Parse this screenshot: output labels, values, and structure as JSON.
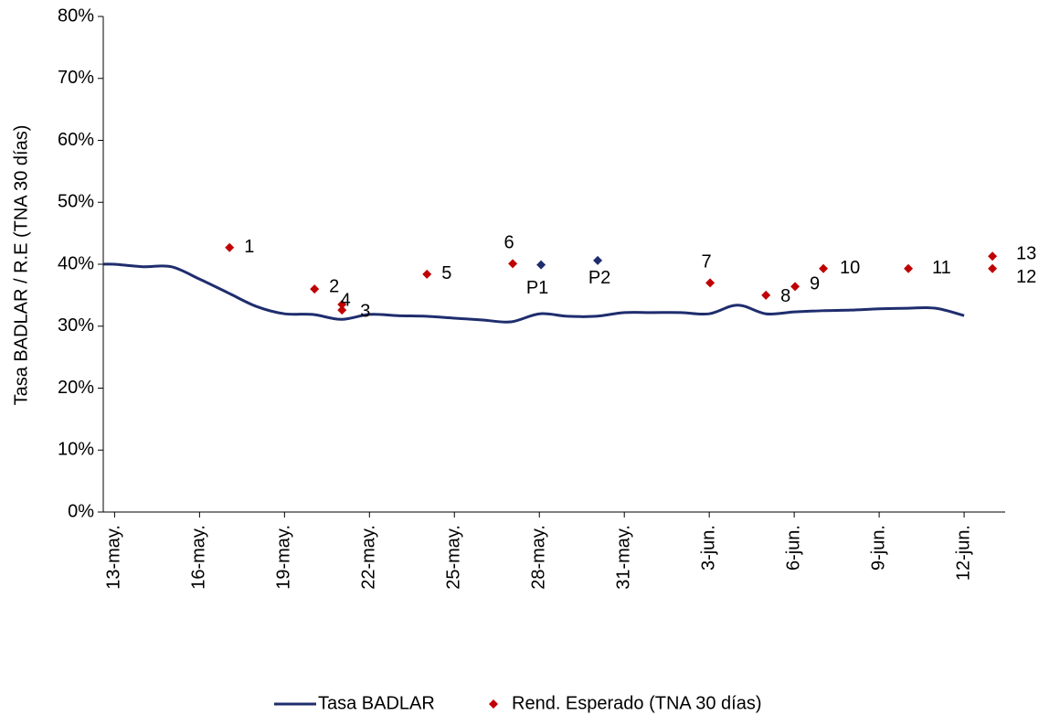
{
  "chart_data": {
    "type": "line-scatter",
    "y_axis_label": "Tasa BADLAR / R.E (TNA 30 días)",
    "xlim": [
      -0.4,
      31.45
    ],
    "xticks": [
      {
        "value": 0,
        "label": "13-may."
      },
      {
        "value": 3,
        "label": "16-may."
      },
      {
        "value": 6,
        "label": "19-may."
      },
      {
        "value": 9,
        "label": "22-may."
      },
      {
        "value": 12,
        "label": "25-may."
      },
      {
        "value": 15,
        "label": "28-may."
      },
      {
        "value": 18,
        "label": "31-may."
      },
      {
        "value": 21,
        "label": "3-jun."
      },
      {
        "value": 24,
        "label": "6-jun."
      },
      {
        "value": 27,
        "label": "9-jun."
      },
      {
        "value": 30,
        "label": "12-jun."
      }
    ],
    "ylim": [
      0,
      80
    ],
    "yticks": [
      {
        "value": 0,
        "label": "0%"
      },
      {
        "value": 10,
        "label": "10%"
      },
      {
        "value": 20,
        "label": "20%"
      },
      {
        "value": 30,
        "label": "30%"
      },
      {
        "value": 40,
        "label": "40%"
      },
      {
        "value": 50,
        "label": "50%"
      },
      {
        "value": 60,
        "label": "60%"
      },
      {
        "value": 70,
        "label": "70%"
      },
      {
        "value": 80,
        "label": "80%"
      }
    ],
    "series": [
      {
        "name": "Tasa BADLAR",
        "type": "line",
        "color": "#1f2d6e",
        "x": [
          -0.4,
          0,
          1,
          2,
          3,
          4,
          5,
          6,
          7,
          8,
          9,
          10,
          11,
          12,
          13,
          14,
          15,
          16,
          17,
          18,
          19,
          20,
          21,
          22,
          23,
          24,
          25,
          26,
          27,
          28,
          29,
          30
        ],
        "values": [
          40.0,
          40.0,
          39.6,
          39.6,
          37.6,
          35.4,
          33.2,
          32.0,
          31.9,
          31.1,
          31.9,
          31.7,
          31.6,
          31.3,
          31.0,
          30.7,
          32.0,
          31.6,
          31.6,
          32.2,
          32.2,
          32.2,
          32.0,
          33.4,
          32.0,
          32.3,
          32.5,
          32.6,
          32.8,
          32.9,
          32.9,
          31.7
        ]
      },
      {
        "name": "Rend. Esperado (TNA 30 días)",
        "type": "scatter",
        "color": "#c00000",
        "x": [
          4.06,
          7.06,
          8.03,
          8.03,
          11.03,
          14.06,
          15.06,
          17.06,
          21.03,
          23.0,
          24.03,
          25.03,
          28.03,
          31.0,
          31.0
        ],
        "values": [
          42.7,
          36.0,
          32.6,
          33.5,
          38.4,
          40.1,
          39.9,
          40.6,
          37.0,
          35.0,
          36.4,
          39.3,
          39.3,
          39.3,
          41.3
        ],
        "point_labels": [
          "1",
          "2",
          "3",
          "4",
          "5",
          "6",
          "P1",
          "P2",
          "7",
          "8",
          "9",
          "10",
          "11",
          "12",
          "13"
        ],
        "point_colors": [
          "#c00000",
          "#c00000",
          "#c00000",
          "#c00000",
          "#c00000",
          "#c00000",
          "#1f2d6e",
          "#1f2d6e",
          "#c00000",
          "#c00000",
          "#c00000",
          "#c00000",
          "#c00000",
          "#c00000",
          "#c00000"
        ]
      }
    ]
  }
}
